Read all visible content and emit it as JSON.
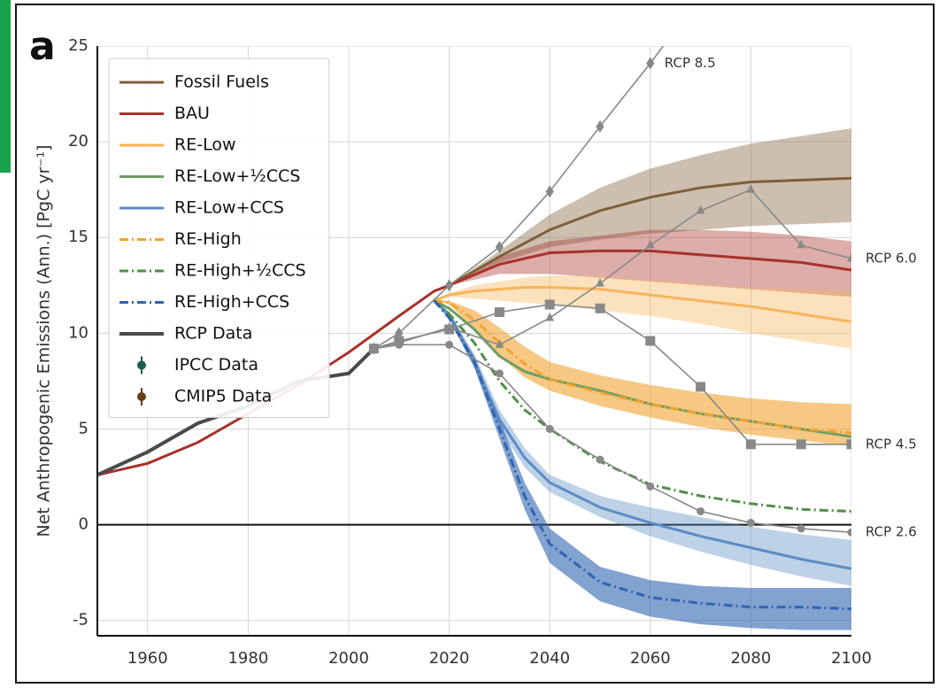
{
  "chart_data": {
    "type": "line",
    "panel_label": "a",
    "ylabel": "Net Anthropogenic Emissions (Ann.) [PgC yr⁻¹]",
    "xlim": [
      1950,
      2100
    ],
    "ylim": [
      -5.8,
      25
    ],
    "xticks": [
      1960,
      1980,
      2000,
      2020,
      2040,
      2060,
      2080,
      2100
    ],
    "yticks": [
      -5,
      0,
      5,
      10,
      15,
      20,
      25
    ],
    "grid": true,
    "zero_line": true,
    "legend": "upper left",
    "series": [
      {
        "name": "Fossil Fuels",
        "color": "#7f5f3a",
        "style": "solid",
        "x": [
          2017,
          2020,
          2030,
          2040,
          2050,
          2060,
          2070,
          2080,
          2090,
          2100
        ],
        "values": [
          12.2,
          12.5,
          14.0,
          15.4,
          16.4,
          17.1,
          17.6,
          17.9,
          18.0,
          18.1
        ],
        "upper": [
          12.2,
          12.5,
          14.3,
          16.2,
          17.6,
          18.6,
          19.3,
          19.9,
          20.3,
          20.7
        ],
        "lower": [
          12.2,
          12.5,
          13.7,
          14.5,
          14.9,
          15.2,
          15.4,
          15.6,
          15.7,
          15.8
        ]
      },
      {
        "name": "BAU",
        "color": "#a8322a",
        "style": "solid",
        "x": [
          1950,
          1960,
          1970,
          1980,
          1990,
          2000,
          2010,
          2017,
          2020,
          2030,
          2040,
          2050,
          2060,
          2070,
          2080,
          2090,
          2100
        ],
        "values": [
          2.6,
          3.2,
          4.3,
          5.8,
          7.3,
          9.0,
          10.9,
          12.2,
          12.5,
          13.6,
          14.2,
          14.3,
          14.3,
          14.1,
          13.9,
          13.7,
          13.3
        ],
        "upper": [
          null,
          null,
          null,
          null,
          null,
          null,
          null,
          12.2,
          12.5,
          14.0,
          14.8,
          15.1,
          15.4,
          15.4,
          15.3,
          15.1,
          14.8
        ],
        "lower": [
          null,
          null,
          null,
          null,
          null,
          null,
          null,
          12.2,
          12.5,
          13.1,
          13.1,
          12.9,
          12.7,
          12.5,
          12.3,
          12.1,
          11.9
        ]
      },
      {
        "name": "RE-Low",
        "color": "#f7b55a",
        "style": "solid",
        "x": [
          2017,
          2020,
          2025,
          2030,
          2035,
          2040,
          2050,
          2060,
          2070,
          2080,
          2090,
          2100
        ],
        "values": [
          11.7,
          12.0,
          12.2,
          12.3,
          12.4,
          12.4,
          12.3,
          12.0,
          11.7,
          11.4,
          11.0,
          10.6
        ],
        "upper": [
          11.7,
          12.1,
          12.5,
          12.7,
          12.9,
          13.0,
          13.0,
          12.8,
          12.6,
          12.4,
          12.3,
          12.2
        ],
        "lower": [
          11.7,
          11.9,
          11.8,
          11.7,
          11.6,
          11.5,
          11.2,
          10.9,
          10.5,
          10.0,
          9.6,
          9.2
        ]
      },
      {
        "name": "RE-Low+½CCS",
        "color": "#6e9e62",
        "style": "solid",
        "x": [
          2017,
          2020,
          2025,
          2030,
          2035,
          2040,
          2050,
          2060,
          2070,
          2080,
          2090,
          2100
        ],
        "values": [
          11.7,
          11.3,
          10.2,
          8.8,
          8.0,
          7.6,
          7.0,
          6.3,
          5.8,
          5.4,
          5.0,
          4.6
        ]
      },
      {
        "name": "RE-Low+CCS",
        "color": "#5b8cc4",
        "style": "solid",
        "x": [
          2017,
          2020,
          2025,
          2030,
          2035,
          2040,
          2050,
          2060,
          2070,
          2080,
          2090,
          2100
        ],
        "values": [
          11.7,
          11.0,
          8.5,
          5.5,
          3.5,
          2.2,
          0.9,
          0.1,
          -0.6,
          -1.2,
          -1.8,
          -2.3
        ],
        "upper": [
          11.7,
          11.1,
          8.9,
          6.0,
          4.0,
          2.6,
          1.5,
          0.9,
          0.4,
          -0.1,
          -0.5,
          -0.8
        ],
        "lower": [
          11.7,
          10.9,
          8.2,
          5.0,
          3.0,
          1.7,
          0.4,
          -0.6,
          -1.4,
          -2.1,
          -2.7,
          -3.2
        ]
      },
      {
        "name": "RE-High",
        "color": "#f0a330",
        "style": "dashdot",
        "x": [
          2017,
          2020,
          2025,
          2030,
          2035,
          2040,
          2050,
          2060,
          2070,
          2080,
          2090,
          2100
        ],
        "values": [
          11.7,
          11.6,
          10.7,
          9.5,
          8.4,
          7.6,
          6.9,
          6.3,
          5.8,
          5.4,
          5.0,
          4.8
        ],
        "upper": [
          11.7,
          11.7,
          11.2,
          10.3,
          9.3,
          8.5,
          7.8,
          7.3,
          6.9,
          6.6,
          6.4,
          6.3
        ],
        "lower": [
          11.7,
          11.5,
          10.2,
          8.8,
          7.7,
          7.0,
          6.2,
          5.6,
          5.1,
          4.7,
          4.4,
          4.1
        ]
      },
      {
        "name": "RE-High+½CCS",
        "color": "#4f8f45",
        "style": "dashdot",
        "x": [
          2017,
          2020,
          2025,
          2030,
          2035,
          2040,
          2050,
          2060,
          2070,
          2080,
          2090,
          2100
        ],
        "values": [
          11.7,
          11.0,
          9.5,
          7.5,
          6.0,
          5.0,
          3.3,
          2.1,
          1.5,
          1.1,
          0.8,
          0.7
        ]
      },
      {
        "name": "RE-High+CCS",
        "color": "#2f64b0",
        "style": "dashdot",
        "x": [
          2017,
          2020,
          2025,
          2030,
          2035,
          2040,
          2050,
          2060,
          2070,
          2080,
          2090,
          2100
        ],
        "values": [
          11.7,
          10.8,
          8.5,
          5.0,
          1.5,
          -1.0,
          -3.0,
          -3.8,
          -4.1,
          -4.3,
          -4.3,
          -4.4
        ],
        "upper": [
          11.7,
          10.9,
          8.8,
          5.5,
          2.2,
          -0.2,
          -2.2,
          -2.9,
          -3.2,
          -3.3,
          -3.3,
          -3.3
        ],
        "lower": [
          11.7,
          10.7,
          8.2,
          4.5,
          0.8,
          -2.0,
          -4.0,
          -4.8,
          -5.2,
          -5.4,
          -5.5,
          -5.5
        ]
      },
      {
        "name": "RCP Data",
        "color": "#4a4a4a",
        "style": "thick",
        "x": [
          1950,
          1960,
          1970,
          1980,
          1990,
          2000,
          2005
        ],
        "values": [
          2.6,
          3.8,
          5.3,
          6.2,
          7.5,
          7.9,
          9.2
        ]
      },
      {
        "name": "IPCC Data",
        "color": "#1a5c4a",
        "style": "errorbar"
      },
      {
        "name": "CMIP5 Data",
        "color": "#6b3d12",
        "style": "errorbar"
      },
      {
        "label": "RCP 8.5",
        "color": "#888888",
        "style": "rcp",
        "marker": "diamond",
        "x": [
          2005,
          2010,
          2020,
          2030,
          2040,
          2050,
          2060,
          2070
        ],
        "values": [
          9.2,
          10.0,
          12.5,
          14.5,
          17.4,
          20.8,
          24.1,
          27.6
        ]
      },
      {
        "label": "RCP 6.0",
        "color": "#888888",
        "style": "rcp",
        "marker": "triangle",
        "x": [
          2005,
          2010,
          2020,
          2030,
          2040,
          2050,
          2060,
          2070,
          2080,
          2090,
          2100
        ],
        "values": [
          9.2,
          9.5,
          10.3,
          9.4,
          10.8,
          12.6,
          14.6,
          16.4,
          17.5,
          14.6,
          13.9
        ]
      },
      {
        "label": "RCP 4.5",
        "color": "#888888",
        "style": "rcp",
        "marker": "square",
        "x": [
          2005,
          2010,
          2020,
          2030,
          2040,
          2050,
          2060,
          2070,
          2080,
          2090,
          2100
        ],
        "values": [
          9.2,
          9.6,
          10.2,
          11.1,
          11.5,
          11.3,
          9.6,
          7.2,
          4.2,
          4.2,
          4.2
        ]
      },
      {
        "label": "RCP 2.6",
        "color": "#888888",
        "style": "rcp",
        "marker": "circle",
        "x": [
          2005,
          2010,
          2020,
          2030,
          2040,
          2050,
          2060,
          2070,
          2080,
          2090,
          2100
        ],
        "values": [
          9.2,
          9.4,
          9.4,
          7.9,
          5.0,
          3.4,
          2.0,
          0.7,
          0.1,
          -0.2,
          -0.4
        ]
      }
    ]
  }
}
